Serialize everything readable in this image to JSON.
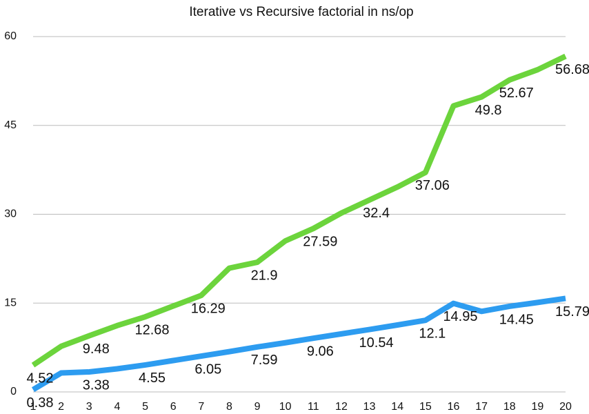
{
  "chart_data": {
    "type": "line",
    "title": "Iterative vs Recursive factorial in ns/op",
    "x": [
      1,
      2,
      3,
      4,
      5,
      6,
      7,
      8,
      9,
      10,
      11,
      12,
      13,
      14,
      15,
      16,
      17,
      18,
      19,
      20
    ],
    "xlim": [
      1,
      20
    ],
    "xticks": [
      1,
      2,
      3,
      4,
      5,
      6,
      7,
      8,
      9,
      10,
      11,
      12,
      13,
      14,
      15,
      16,
      17,
      18,
      19,
      20
    ],
    "ylim": [
      0,
      60
    ],
    "yticks": [
      0,
      15,
      30,
      45,
      60
    ],
    "grid": true,
    "series": [
      {
        "color": "#6cd43c",
        "values": [
          4.52,
          7.7,
          9.48,
          11.2,
          12.68,
          14.5,
          16.29,
          20.9,
          21.9,
          25.5,
          27.59,
          30.2,
          32.4,
          34.6,
          37.06,
          48.3,
          49.8,
          52.67,
          54.4,
          56.68
        ],
        "value_labels": [
          "4.52",
          null,
          "9.48",
          null,
          "12.68",
          null,
          "16.29",
          null,
          "21.9",
          null,
          "27.59",
          null,
          "32.4",
          null,
          "37.06",
          null,
          "49.8",
          "52.67",
          null,
          "56.68"
        ]
      },
      {
        "color": "#2d9cf0",
        "values": [
          0.38,
          3.2,
          3.38,
          3.9,
          4.55,
          5.3,
          6.05,
          6.8,
          7.59,
          8.3,
          9.06,
          9.8,
          10.54,
          11.3,
          12.1,
          14.95,
          13.6,
          14.45,
          15.1,
          15.79
        ],
        "value_labels": [
          "0.38",
          null,
          "3.38",
          null,
          "4.55",
          null,
          "6.05",
          null,
          "7.59",
          null,
          "9.06",
          null,
          "10.54",
          null,
          "12.1",
          "14.95",
          null,
          "14.45",
          null,
          "15.79"
        ]
      }
    ]
  }
}
